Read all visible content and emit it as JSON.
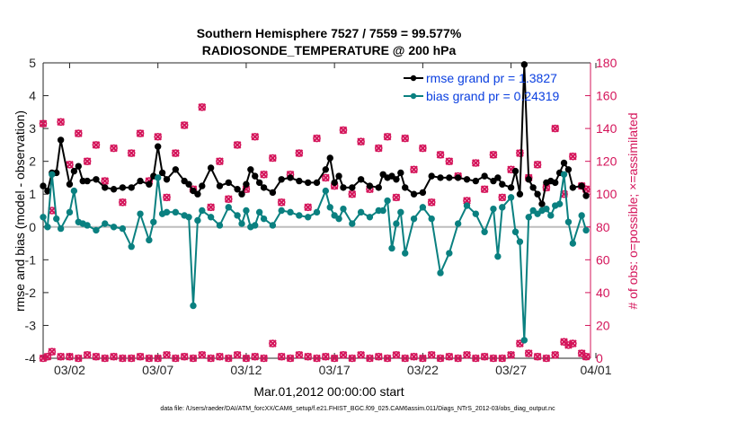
{
  "chart_data": {
    "type": "line",
    "title_line1": "Southern Hemisphere 7527 / 7559 = 99.577%",
    "title_line2": "RADIOSONDE_TEMPERATURE @ 200 hPa",
    "xlabel": "Mar.01,2012 00:00:00 start",
    "ylabel": "rmse and bias (model - observation)",
    "y2label": "# of obs: o=possible; ×=assimilated",
    "footer": "data file: /Users/raeder/DAI/ATM_forcXX/CAM6_setup/f.e21.FHIST_BGC.f09_025.CAM6assim.011/Diags_NTrS_2012-03/obs_diag_output.nc",
    "xlim": [
      0.5,
      31.5
    ],
    "ylim": [
      -4,
      5
    ],
    "y2lim": [
      0,
      180
    ],
    "x_ticks": [
      {
        "value": 2,
        "label": "03/02"
      },
      {
        "value": 7,
        "label": "03/07"
      },
      {
        "value": 12,
        "label": "03/12"
      },
      {
        "value": 17,
        "label": "03/17"
      },
      {
        "value": 22,
        "label": "03/22"
      },
      {
        "value": 27,
        "label": "03/27"
      },
      {
        "value": 32,
        "label": "04/01"
      }
    ],
    "y_ticks": [
      "5",
      "4",
      "3",
      "2",
      "1",
      "0",
      "-1",
      "-2",
      "-3",
      "-4"
    ],
    "y2_ticks": [
      "180",
      "160",
      "140",
      "120",
      "100",
      "80",
      "60",
      "40",
      "20",
      "0"
    ],
    "zero_line": 0,
    "colors": {
      "rmse": "#000000",
      "bias": "#0a8080",
      "obs": "#d4145a",
      "zero": "#bdbdbd",
      "legend_text": "#0a3fe0"
    },
    "series": [
      {
        "name": "rmse grand pr = 1.3827",
        "color": "#000000",
        "x": [
          0.5,
          0.75,
          1.0,
          1.25,
          1.5,
          2.0,
          2.25,
          2.5,
          2.75,
          3.0,
          3.5,
          4.0,
          4.5,
          5.0,
          5.5,
          6.0,
          6.5,
          6.75,
          7.0,
          7.25,
          7.5,
          8.0,
          8.5,
          8.75,
          9.0,
          9.25,
          9.5,
          10.0,
          10.5,
          11.0,
          11.5,
          11.75,
          12.0,
          12.25,
          12.5,
          12.75,
          13.0,
          13.5,
          14.0,
          14.5,
          15.0,
          15.5,
          16.0,
          16.5,
          16.75,
          17.0,
          17.25,
          17.5,
          18.0,
          18.5,
          19.0,
          19.5,
          19.75,
          20.0,
          20.25,
          20.5,
          20.75,
          21.0,
          21.5,
          22.0,
          22.5,
          23.0,
          23.5,
          24.0,
          24.5,
          25.0,
          25.5,
          26.0,
          26.25,
          26.5,
          27.0,
          27.25,
          27.5,
          27.75,
          28.0,
          28.25,
          28.5,
          28.75,
          29.0,
          29.25,
          29.5,
          29.75,
          30.0,
          30.25,
          30.5,
          31.0,
          31.25
        ],
        "values": [
          1.25,
          1.1,
          1.65,
          1.65,
          2.65,
          1.3,
          1.7,
          1.85,
          1.4,
          1.4,
          1.45,
          1.2,
          1.15,
          1.2,
          1.2,
          1.4,
          1.3,
          1.55,
          2.45,
          1.65,
          1.45,
          1.75,
          1.4,
          1.3,
          1.1,
          1.0,
          1.25,
          1.8,
          1.25,
          1.35,
          1.15,
          1.0,
          1.3,
          1.75,
          1.55,
          1.35,
          1.2,
          1.05,
          1.45,
          1.5,
          1.4,
          1.35,
          1.35,
          1.75,
          2.1,
          1.35,
          1.55,
          1.2,
          1.2,
          1.45,
          1.25,
          1.2,
          1.6,
          1.5,
          1.55,
          1.45,
          1.65,
          1.2,
          1.0,
          1.05,
          1.55,
          1.5,
          1.5,
          1.5,
          1.45,
          1.4,
          1.55,
          1.4,
          1.5,
          1.3,
          1.2,
          1.7,
          1.0,
          4.95,
          1.45,
          1.2,
          1.0,
          0.7,
          1.35,
          1.4,
          1.35,
          1.65,
          1.95,
          1.75,
          1.2,
          1.25,
          0.95
        ]
      },
      {
        "name": "bias grand pr = 0.24319",
        "color": "#0a8080",
        "x": [
          0.5,
          0.75,
          1.0,
          1.25,
          1.5,
          2.0,
          2.25,
          2.5,
          2.75,
          3.0,
          3.5,
          4.0,
          4.5,
          5.0,
          5.5,
          6.0,
          6.5,
          6.75,
          7.0,
          7.25,
          7.5,
          8.0,
          8.5,
          8.75,
          9.0,
          9.25,
          9.5,
          10.0,
          10.5,
          11.0,
          11.5,
          11.75,
          12.0,
          12.25,
          12.5,
          12.75,
          13.0,
          13.5,
          14.0,
          14.5,
          15.0,
          15.5,
          16.0,
          16.5,
          16.75,
          17.0,
          17.25,
          17.5,
          18.0,
          18.5,
          19.0,
          19.5,
          19.75,
          20.0,
          20.25,
          20.5,
          20.75,
          21.0,
          21.5,
          22.0,
          22.5,
          23.0,
          23.5,
          24.0,
          24.5,
          25.0,
          25.5,
          26.0,
          26.25,
          26.5,
          27.0,
          27.25,
          27.5,
          27.75,
          28.0,
          28.25,
          28.5,
          28.75,
          29.0,
          29.25,
          29.5,
          29.75,
          30.0,
          30.25,
          30.5,
          31.0,
          31.25
        ],
        "values": [
          0.3,
          0.0,
          1.6,
          0.25,
          -0.05,
          0.45,
          1.1,
          0.15,
          0.1,
          0.05,
          -0.1,
          0.1,
          0.0,
          -0.05,
          -0.6,
          0.4,
          -0.4,
          0.15,
          1.5,
          0.4,
          0.45,
          0.45,
          0.35,
          0.3,
          -2.4,
          0.2,
          0.5,
          0.3,
          0.05,
          0.6,
          0.35,
          0.1,
          0.5,
          0.0,
          0.05,
          0.45,
          0.25,
          0.05,
          0.5,
          0.45,
          0.35,
          0.3,
          0.45,
          1.1,
          0.6,
          0.35,
          0.25,
          0.55,
          0.1,
          0.45,
          0.3,
          0.5,
          0.5,
          0.8,
          -0.65,
          0.1,
          0.45,
          -0.8,
          0.25,
          0.6,
          0.25,
          -1.4,
          -0.8,
          0.1,
          0.65,
          0.4,
          -0.15,
          0.55,
          -0.9,
          0.6,
          0.9,
          -0.15,
          -0.45,
          -3.45,
          0.3,
          0.5,
          0.4,
          0.5,
          0.55,
          0.35,
          0.65,
          0.7,
          1.6,
          0.15,
          -0.5,
          0.35,
          -0.1
        ]
      }
    ],
    "obs_possible": {
      "x": [
        0.5,
        1.0,
        1.5,
        2.0,
        2.5,
        3.0,
        3.5,
        4.0,
        4.5,
        5.0,
        5.5,
        6.0,
        6.5,
        7.0,
        7.5,
        8.0,
        8.5,
        9.0,
        9.5,
        10.0,
        10.5,
        11.0,
        11.5,
        12.0,
        12.5,
        13.0,
        13.5,
        14.0,
        14.5,
        15.0,
        15.5,
        16.0,
        16.5,
        17.0,
        17.5,
        18.0,
        18.5,
        19.0,
        19.5,
        20.0,
        20.5,
        21.0,
        21.5,
        22.0,
        22.5,
        23.0,
        23.5,
        24.0,
        24.5,
        25.0,
        25.5,
        26.0,
        26.5,
        27.0,
        27.5,
        28.0,
        28.5,
        29.0,
        29.5,
        30.0,
        30.5,
        31.0,
        31.25
      ],
      "values": [
        143,
        90,
        144,
        118,
        137,
        120,
        130,
        108,
        128,
        95,
        125,
        137,
        108,
        135,
        98,
        125,
        142,
        103,
        153,
        92,
        120,
        97,
        130,
        103,
        135,
        112,
        122,
        95,
        112,
        125,
        92,
        134,
        110,
        105,
        139,
        100,
        132,
        103,
        128,
        135,
        98,
        134,
        115,
        128,
        95,
        124,
        120,
        111,
        96,
        119,
        103,
        124,
        98,
        115,
        125,
        110,
        118,
        104,
        140,
        100,
        123,
        105,
        103
      ]
    },
    "obs_assimilated": {
      "x": [
        0.5,
        1.0,
        1.5,
        2.0,
        2.5,
        3.0,
        3.5,
        4.0,
        4.5,
        5.0,
        5.5,
        6.0,
        6.5,
        7.0,
        7.5,
        8.0,
        8.5,
        9.0,
        9.5,
        10.0,
        10.5,
        11.0,
        11.5,
        12.0,
        12.5,
        13.0,
        13.5,
        14.0,
        14.5,
        15.0,
        15.5,
        16.0,
        16.5,
        17.0,
        17.5,
        18.0,
        18.5,
        19.0,
        19.5,
        20.0,
        20.5,
        21.0,
        21.5,
        22.0,
        22.5,
        23.0,
        23.5,
        24.0,
        24.5,
        25.0,
        25.5,
        26.0,
        26.5,
        27.0,
        27.5,
        28.0,
        28.5,
        29.0,
        29.5,
        30.0,
        30.5,
        31.0,
        31.25
      ],
      "values": [
        143,
        90,
        144,
        118,
        137,
        120,
        130,
        108,
        128,
        95,
        125,
        137,
        108,
        135,
        98,
        125,
        142,
        103,
        153,
        92,
        120,
        97,
        130,
        103,
        135,
        112,
        122,
        95,
        112,
        125,
        92,
        134,
        110,
        105,
        139,
        100,
        132,
        103,
        128,
        135,
        98,
        134,
        115,
        128,
        95,
        124,
        120,
        111,
        96,
        119,
        103,
        124,
        98,
        115,
        125,
        110,
        118,
        104,
        140,
        100,
        123,
        105,
        103
      ]
    },
    "obs_bottom_possible": {
      "x": [
        0.5,
        0.75,
        1.0,
        1.5,
        2.0,
        2.5,
        3.0,
        3.5,
        4.0,
        4.5,
        5.0,
        5.5,
        6.0,
        6.5,
        7.0,
        7.5,
        8.0,
        8.5,
        9.0,
        9.5,
        10.0,
        10.5,
        11.0,
        11.5,
        12.0,
        12.5,
        13.0,
        13.5,
        14.0,
        14.5,
        15.0,
        15.5,
        16.0,
        16.5,
        17.0,
        17.5,
        18.0,
        18.5,
        19.0,
        19.5,
        20.0,
        20.5,
        21.0,
        21.5,
        22.0,
        22.5,
        23.0,
        23.5,
        24.0,
        24.5,
        25.0,
        25.5,
        26.0,
        26.5,
        27.0,
        27.5,
        28.0,
        28.5,
        29.0,
        29.5,
        30.0,
        30.25,
        30.5,
        31.0,
        31.25
      ],
      "values": [
        0,
        1,
        4,
        1,
        1,
        0,
        2,
        1,
        0,
        1,
        0,
        0,
        1,
        0,
        0,
        2,
        0,
        1,
        0,
        2,
        0,
        1,
        0,
        2,
        0,
        1,
        0,
        9,
        1,
        0,
        2,
        1,
        0,
        1,
        0,
        2,
        0,
        2,
        0,
        1,
        0,
        2,
        0,
        1,
        0,
        2,
        0,
        1,
        0,
        2,
        0,
        1,
        0,
        0,
        2,
        9,
        3,
        1,
        0,
        2,
        10,
        8,
        9,
        3,
        1
      ]
    },
    "obs_bottom_assimilated": {
      "x": [
        0.5,
        0.75,
        1.0,
        1.5,
        2.0,
        2.5,
        3.0,
        3.5,
        4.0,
        4.5,
        5.0,
        5.5,
        6.0,
        6.5,
        7.0,
        7.5,
        8.0,
        8.5,
        9.0,
        9.5,
        10.0,
        10.5,
        11.0,
        11.5,
        12.0,
        12.5,
        13.0,
        13.5,
        14.0,
        14.5,
        15.0,
        15.5,
        16.0,
        16.5,
        17.0,
        17.5,
        18.0,
        18.5,
        19.0,
        19.5,
        20.0,
        20.5,
        21.0,
        21.5,
        22.0,
        22.5,
        23.0,
        23.5,
        24.0,
        24.5,
        25.0,
        25.5,
        26.0,
        26.5,
        27.0,
        27.5,
        28.0,
        28.5,
        29.0,
        29.5,
        30.0,
        30.25,
        30.5,
        31.0,
        31.25
      ],
      "values": [
        0,
        1,
        4,
        1,
        1,
        0,
        2,
        1,
        0,
        1,
        0,
        0,
        1,
        0,
        0,
        2,
        0,
        1,
        0,
        2,
        0,
        1,
        0,
        2,
        0,
        1,
        0,
        9,
        1,
        0,
        2,
        1,
        0,
        1,
        0,
        2,
        0,
        2,
        0,
        1,
        0,
        2,
        0,
        1,
        0,
        2,
        0,
        1,
        0,
        2,
        0,
        1,
        0,
        0,
        2,
        9,
        3,
        1,
        0,
        2,
        10,
        8,
        9,
        3,
        1
      ]
    }
  }
}
